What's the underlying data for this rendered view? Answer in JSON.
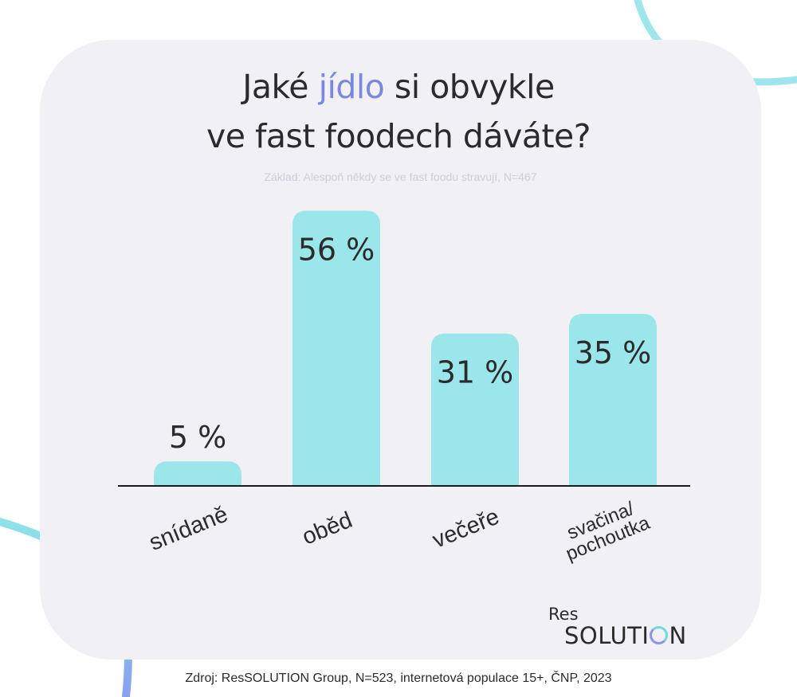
{
  "title": {
    "line1_before": "Jaké",
    "line1_accent": "jídlo",
    "line1_after": "si obvykle",
    "line2": "ve fast foodech dáváte?"
  },
  "subtitle": "Základ: Alespoň někdy se ve fast foodu stravují, N=467",
  "source": "Zdroj: ResSOLUTION Group, N=523, internetová populace 15+, ČNP, 2023",
  "logo": {
    "res": "Res",
    "main_before": "SOLUTI",
    "main_after": "N"
  },
  "colors": {
    "bar": "#9ae6ea",
    "accent": "#7b88e0",
    "card": "#f1f0f4",
    "text": "#2b2b2b"
  },
  "chart_data": {
    "type": "bar",
    "categories": [
      "snídaně",
      "oběd",
      "večeře",
      "svačina/\npochoutka"
    ],
    "values": [
      5,
      56,
      31,
      35
    ],
    "value_labels": [
      "5 %",
      "56 %",
      "31 %",
      "35 %"
    ],
    "unit": "%",
    "ylim": [
      0,
      60
    ],
    "grid": false,
    "legend": "none"
  }
}
